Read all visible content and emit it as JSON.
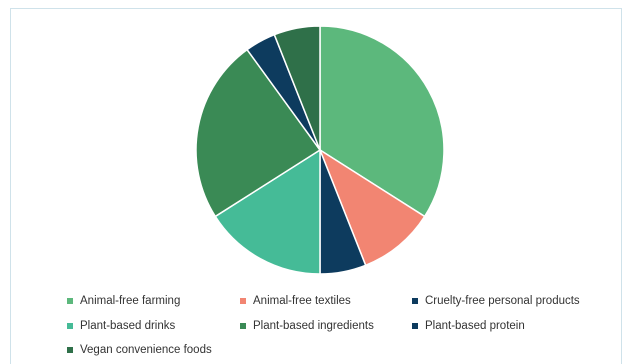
{
  "chart_data": {
    "type": "pie",
    "title": "",
    "categories": [
      "Animal-free farming",
      "Animal-free textiles",
      "Cruelty-free personal products",
      "Plant-based drinks",
      "Plant-based ingredients",
      "Plant-based protein",
      "Vegan convenience foods"
    ],
    "values": [
      34,
      10,
      6,
      16,
      24,
      4,
      6
    ],
    "colors": [
      "#5cb87c",
      "#f28572",
      "#0d3b5e",
      "#45bb97",
      "#3a8a55",
      "#0d3b5e",
      "#2f7049"
    ],
    "legend_position": "bottom"
  },
  "legend": {
    "items": [
      {
        "label": "Animal-free farming"
      },
      {
        "label": "Animal-free textiles"
      },
      {
        "label": "Cruelty-free personal products"
      },
      {
        "label": "Plant-based drinks"
      },
      {
        "label": "Plant-based ingredients"
      },
      {
        "label": "Plant-based protein"
      },
      {
        "label": "Vegan convenience foods"
      }
    ]
  }
}
